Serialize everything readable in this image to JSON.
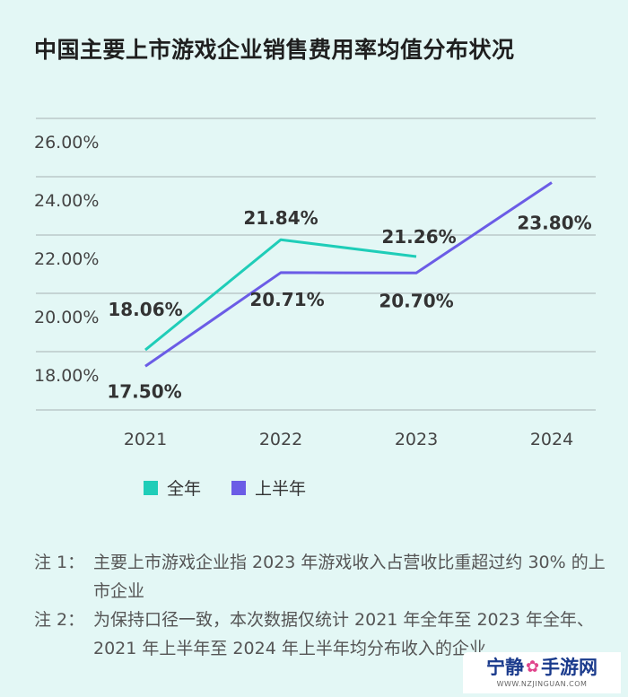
{
  "chart_data": {
    "type": "line",
    "title": "中国主要上市游戏企业销售费用率均值分布状况",
    "categories": [
      "2021",
      "2022",
      "2023",
      "2024"
    ],
    "y_ticks": [
      "18.00%",
      "20.00%",
      "22.00%",
      "24.00%",
      "26.00%"
    ],
    "ylim": [
      16,
      26
    ],
    "grid": true,
    "legend_position": "bottom-left",
    "series": [
      {
        "name": "全年",
        "color": "#1fcdb8",
        "values": [
          18.06,
          21.84,
          21.26,
          null
        ],
        "labels": [
          "18.06%",
          "21.84%",
          "21.26%",
          ""
        ]
      },
      {
        "name": "上半年",
        "color": "#6b5ce6",
        "values": [
          17.5,
          20.71,
          20.7,
          23.8
        ],
        "labels": [
          "17.50%",
          "20.71%",
          "20.70%",
          "23.80%"
        ]
      }
    ]
  },
  "notes": [
    {
      "label": "注 1：",
      "text": "主要上市游戏企业指 2023 年游戏收入占营收比重超过约 30% 的上市企业"
    },
    {
      "label": "注 2：",
      "text": "为保持口径一致，本次数据仅统计 2021 年全年至 2023 年全年、2021 年上半年至 2024 年上半年均分布收入的企业"
    }
  ],
  "watermark": {
    "left": "宁静",
    "right": "手游网",
    "sub": "WWW.NZJINGUAN.COM"
  }
}
